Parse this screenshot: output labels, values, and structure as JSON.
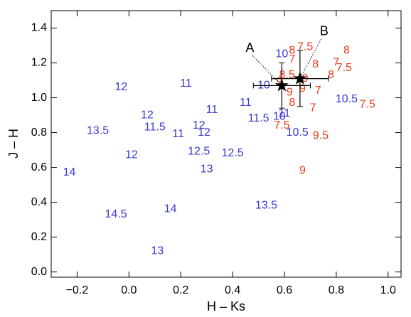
{
  "chart_data": {
    "type": "scatter",
    "xlabel": "H – Ks",
    "ylabel": "J – H",
    "xlim": [
      -0.3,
      1.05
    ],
    "ylim": [
      -0.03,
      1.5
    ],
    "xticks": [
      {
        "value": -0.2,
        "label": "−0.2"
      },
      {
        "value": 0,
        "label": "0.0"
      },
      0.2,
      0.4,
      0.6,
      0.8,
      {
        "value": 1,
        "label": "1.0"
      }
    ],
    "yticks": [
      {
        "value": 0,
        "label": "0.0"
      },
      0.2,
      0.4,
      0.6,
      0.8,
      {
        "value": 1,
        "label": "1.0"
      },
      1.2,
      1.4
    ],
    "series": [
      {
        "color": "#3a3ad0",
        "x": [
          -0.23,
          -0.03,
          -0.12,
          0.07,
          0.1,
          0.01,
          -0.05,
          0.16,
          0.11,
          0.22,
          0.19,
          0.27,
          0.29,
          0.32,
          0.27,
          0.4,
          0.3,
          0.45,
          0.5,
          0.53,
          0.52,
          0.59,
          0.58,
          0.6,
          0.65,
          0.84
        ],
        "y": [
          0.57,
          1.06,
          0.81,
          0.9,
          0.83,
          0.67,
          0.33,
          0.36,
          0.12,
          1.08,
          0.79,
          0.84,
          0.8,
          0.93,
          0.69,
          0.68,
          0.59,
          0.97,
          0.88,
          0.38,
          1.07,
          1.25,
          0.89,
          0.91,
          0.8,
          0.99
        ],
        "labels": [
          "14",
          "12",
          "13.5",
          "12",
          "11.5",
          "12",
          "14.5",
          "14",
          "13",
          "11",
          "11",
          "12",
          "12",
          "11",
          "12.5",
          "12.5",
          "13",
          "11",
          "11.5",
          "13.5",
          "10",
          "10",
          "10",
          "11",
          "10.5",
          "10.5"
        ]
      },
      {
        "color": "#ee3a1a",
        "x": [
          0.63,
          0.68,
          0.63,
          0.72,
          0.84,
          0.8,
          0.83,
          0.78,
          0.61,
          0.58,
          0.68,
          0.67,
          0.73,
          0.63,
          0.71,
          0.59,
          0.74,
          0.67,
          0.92,
          0.62
        ],
        "y": [
          1.27,
          1.29,
          1.22,
          1.19,
          1.27,
          1.2,
          1.17,
          1.13,
          1.13,
          1.09,
          1.11,
          1.05,
          1.04,
          0.97,
          0.94,
          0.84,
          0.78,
          0.58,
          0.96,
          1.03
        ],
        "labels": [
          "8",
          "7.5",
          "7",
          "8",
          "8",
          "7",
          "7.5",
          "8",
          "8.5",
          "9",
          "9",
          "9",
          "7",
          "8",
          "7",
          "7.5",
          "9.5",
          "9",
          "7.5",
          "9"
        ]
      }
    ],
    "stars": {
      "x": [
        0.59,
        0.66
      ],
      "y": [
        1.07,
        1.11
      ],
      "xerr": [
        0.11,
        0.11
      ],
      "yerr": [
        0.13,
        0.16
      ],
      "labels": [
        "A",
        "B"
      ]
    }
  }
}
